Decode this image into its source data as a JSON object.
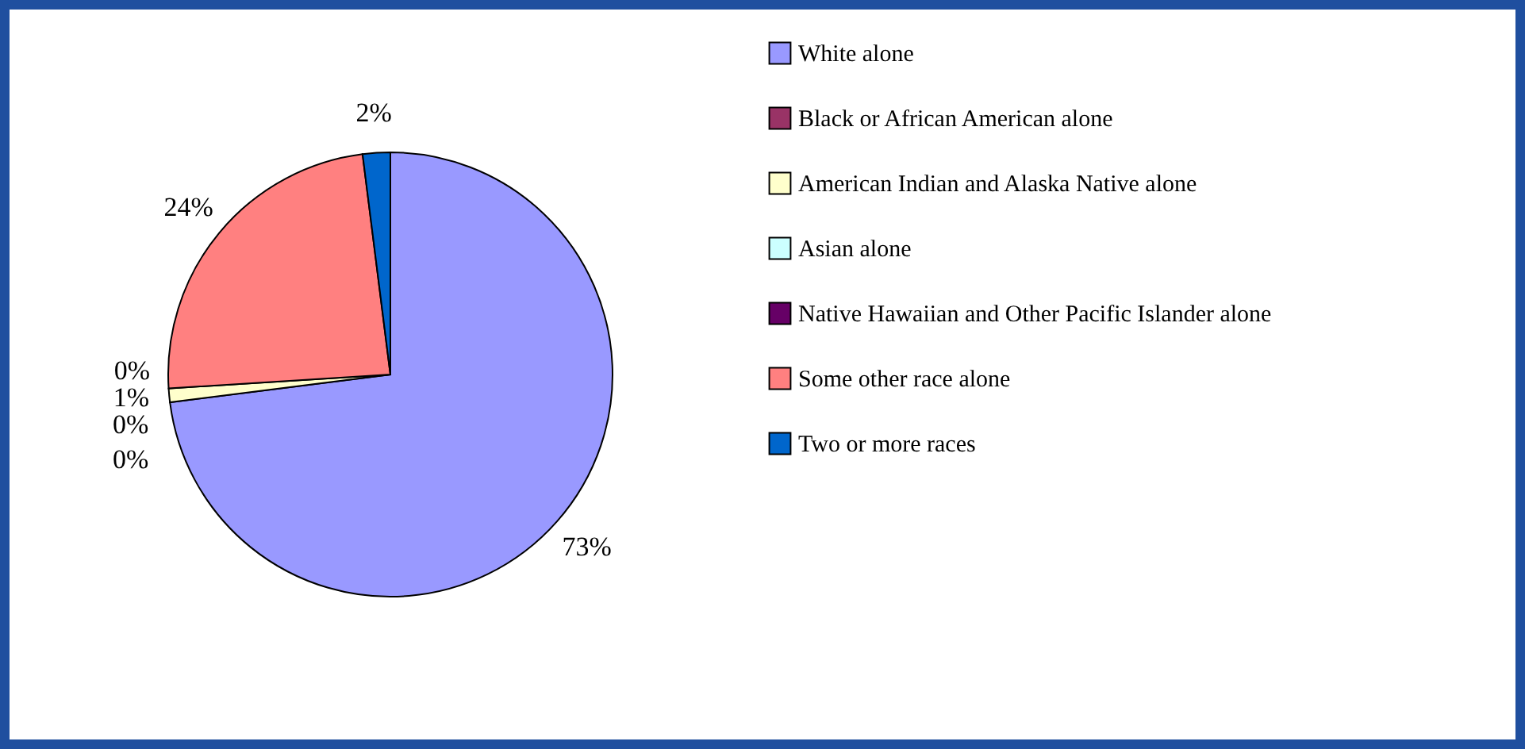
{
  "chart_data": {
    "type": "pie",
    "categories": [
      "White alone",
      "Black or African American alone",
      "American Indian and Alaska Native alone",
      "Asian alone",
      "Native Hawaiian and Other Pacific Islander alone",
      "Some other race alone",
      "Two or more races"
    ],
    "values": [
      73,
      0,
      1,
      0,
      0,
      24,
      2
    ],
    "colors": [
      "#9999ff",
      "#993366",
      "#ffffcc",
      "#ccffff",
      "#660066",
      "#ff8080",
      "#0066cc"
    ],
    "value_labels": [
      "73%",
      "0%",
      "1%",
      "0%",
      "0%",
      "24%",
      "2%"
    ],
    "legend": "right"
  }
}
